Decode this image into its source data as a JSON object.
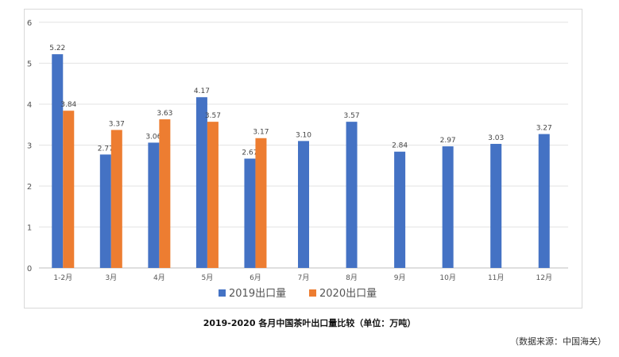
{
  "chart_data": {
    "type": "bar",
    "title": "",
    "xlabel": "",
    "ylabel": "",
    "ylim": [
      0,
      6
    ],
    "yticks": [
      0,
      1,
      2,
      3,
      4,
      5,
      6
    ],
    "grid": true,
    "legend_position": "bottom",
    "categories": [
      "1-2月",
      "3月",
      "4月",
      "5月",
      "6月",
      "7月",
      "8月",
      "9月",
      "10月",
      "11月",
      "12月"
    ],
    "series": [
      {
        "name": "2019出口量",
        "color": "#4472c4",
        "values": [
          5.22,
          2.77,
          3.06,
          4.17,
          2.67,
          3.1,
          3.57,
          2.84,
          2.97,
          3.03,
          3.27
        ],
        "labels": [
          "5.22",
          "2.77",
          "3.06",
          "4.17",
          "2.67",
          "3.10",
          "3.57",
          "2.84",
          "2.97",
          "3.03",
          "3.27"
        ]
      },
      {
        "name": "2020出口量",
        "color": "#ed7d31",
        "values": [
          3.84,
          3.37,
          3.63,
          3.57,
          3.17,
          null,
          null,
          null,
          null,
          null,
          null
        ],
        "labels": [
          "3.84",
          "3.37",
          "3.63",
          "3.57",
          "3.17",
          null,
          null,
          null,
          null,
          null,
          null
        ]
      }
    ]
  },
  "caption": "2019-2020 各月中国茶叶出口量比较（单位：万吨）",
  "source": "（数据来源：中国海关）"
}
